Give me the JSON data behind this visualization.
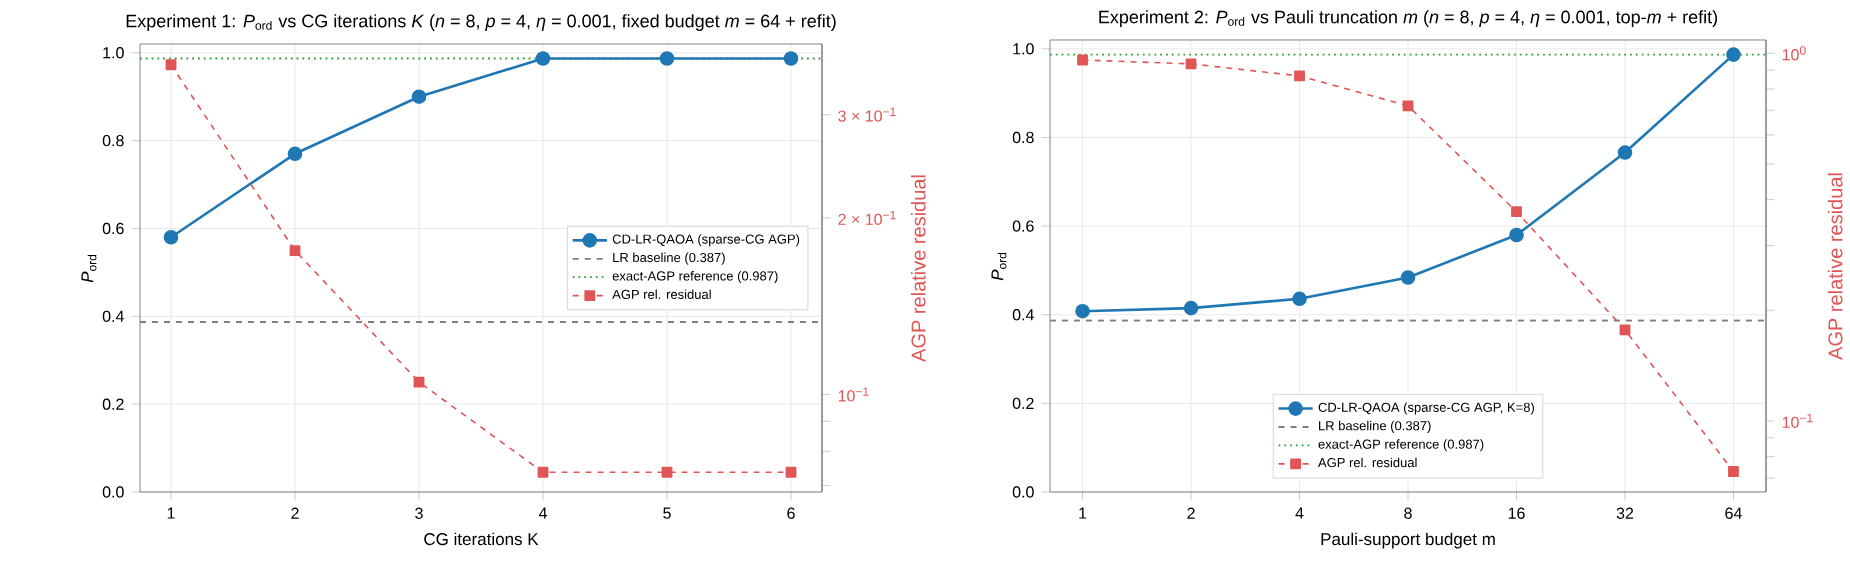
{
  "chart_data": [
    {
      "type": "line",
      "title": "Experiment 1: *P*$_{ord}$ vs CG iterations *K*  (*n* = 8,  *p* = 4,  *η* = 0.001, fixed budget *m* = 64 + refit)",
      "xlabel": "CG iterations  K",
      "ylabel": "*P*$_{ord}$",
      "y2label": "AGP relative residual",
      "x": [
        1,
        2,
        3,
        4,
        5,
        6
      ],
      "xlim": [
        0.75,
        6.25
      ],
      "xticks": [
        1,
        2,
        3,
        4,
        5,
        6
      ],
      "ylim": [
        0,
        1.02
      ],
      "yticks": [
        {
          "value": 0,
          "label": "0.0"
        },
        {
          "value": 0.2,
          "label": "0.2"
        },
        {
          "value": 0.4,
          "label": "0.4"
        },
        {
          "value": 0.6,
          "label": "0.6"
        },
        {
          "value": 0.8,
          "label": "0.8"
        },
        {
          "value": 1,
          "label": "1.0"
        }
      ],
      "y2lim": [
        0.0682,
        0.396
      ],
      "y2ticks": [
        {
          "value": 0.07,
          "label": null
        },
        {
          "value": 0.08,
          "label": null
        },
        {
          "value": 0.09,
          "label": null
        },
        {
          "value": 0.1,
          "label": "10$^{−1}$"
        },
        {
          "value": 0.2,
          "label": "2 × 10$^{−1}$"
        },
        {
          "value": 0.3,
          "label": "3 × 10$^{−1}$"
        }
      ],
      "log": "y2",
      "grid": true,
      "legend": "center right",
      "series": [
        {
          "name": "CD-LR-QAOA (sparse-CG AGP)",
          "color": "#1f77b4",
          "marker": "circle",
          "line_style": "solid",
          "values": [
            0.58,
            0.77,
            0.9,
            0.987,
            0.987,
            0.987
          ]
        },
        {
          "name": "AGP rel. residual",
          "color": "#e05555",
          "marker": "square",
          "line_style": "dashed",
          "axis": "y2",
          "values": [
            0.365,
            0.176,
            0.105,
            0.0737,
            0.0737,
            0.0737
          ]
        }
      ],
      "ref_lines": [
        {
          "axis": "y",
          "value": 0.387,
          "label": "LR baseline (0.387)",
          "color": "#7f7f7f",
          "line_style": "dashed"
        },
        {
          "axis": "y",
          "value": 0.987,
          "label": "exact-AGP reference (0.987)",
          "color": "#2ca02c",
          "line_style": "dotted"
        }
      ]
    },
    {
      "type": "line",
      "title": "Experiment 2: *P*$_{ord}$ vs Pauli truncation *m*  (*n* = 8,  *p* = 4,  *η* = 0.001, top-*m* + refit)",
      "xlabel": "Pauli-support budget  m",
      "ylabel": "*P*$_{ord}$",
      "y2label": "AGP relative residual",
      "categories": [
        "1",
        "2",
        "4",
        "8",
        "16",
        "32",
        "64"
      ],
      "ylim": [
        0,
        1.02
      ],
      "yticks": [
        {
          "value": 0,
          "label": "0.0"
        },
        {
          "value": 0.2,
          "label": "0.2"
        },
        {
          "value": 0.4,
          "label": "0.4"
        },
        {
          "value": 0.6,
          "label": "0.6"
        },
        {
          "value": 0.8,
          "label": "0.8"
        },
        {
          "value": 1,
          "label": "1.0"
        }
      ],
      "y2lim": [
        0.0641,
        1.087
      ],
      "y2ticks": [
        {
          "value": 0.07,
          "label": null
        },
        {
          "value": 0.08,
          "label": null
        },
        {
          "value": 0.09,
          "label": null
        },
        {
          "value": 0.1,
          "label": "10$^{−1}$"
        },
        {
          "value": 0.2,
          "label": null
        },
        {
          "value": 0.3,
          "label": null
        },
        {
          "value": 0.4,
          "label": null
        },
        {
          "value": 0.5,
          "label": null
        },
        {
          "value": 0.6,
          "label": null
        },
        {
          "value": 0.7,
          "label": null
        },
        {
          "value": 0.8,
          "label": null
        },
        {
          "value": 0.9,
          "label": null
        },
        {
          "value": 1,
          "label": "10$^{0}$"
        }
      ],
      "log": "y2",
      "grid": true,
      "legend": "bottom",
      "series": [
        {
          "name": "CD-LR-QAOA (sparse-CG AGP, K=8)",
          "color": "#1f77b4",
          "marker": "circle",
          "line_style": "solid",
          "values": [
            0.408,
            0.415,
            0.436,
            0.484,
            0.58,
            0.766,
            0.987
          ]
        },
        {
          "name": "AGP rel. residual",
          "color": "#e05555",
          "marker": "square",
          "line_style": "dashed",
          "axis": "y2",
          "values": [
            0.959,
            0.936,
            0.868,
            0.72,
            0.371,
            0.177,
            0.0729
          ]
        }
      ],
      "ref_lines": [
        {
          "axis": "y",
          "value": 0.387,
          "label": "LR baseline (0.387)",
          "color": "#7f7f7f",
          "line_style": "dashed"
        },
        {
          "axis": "y",
          "value": 0.987,
          "label": "exact-AGP reference (0.987)",
          "color": "#2ca02c",
          "line_style": "dotted"
        }
      ]
    }
  ]
}
